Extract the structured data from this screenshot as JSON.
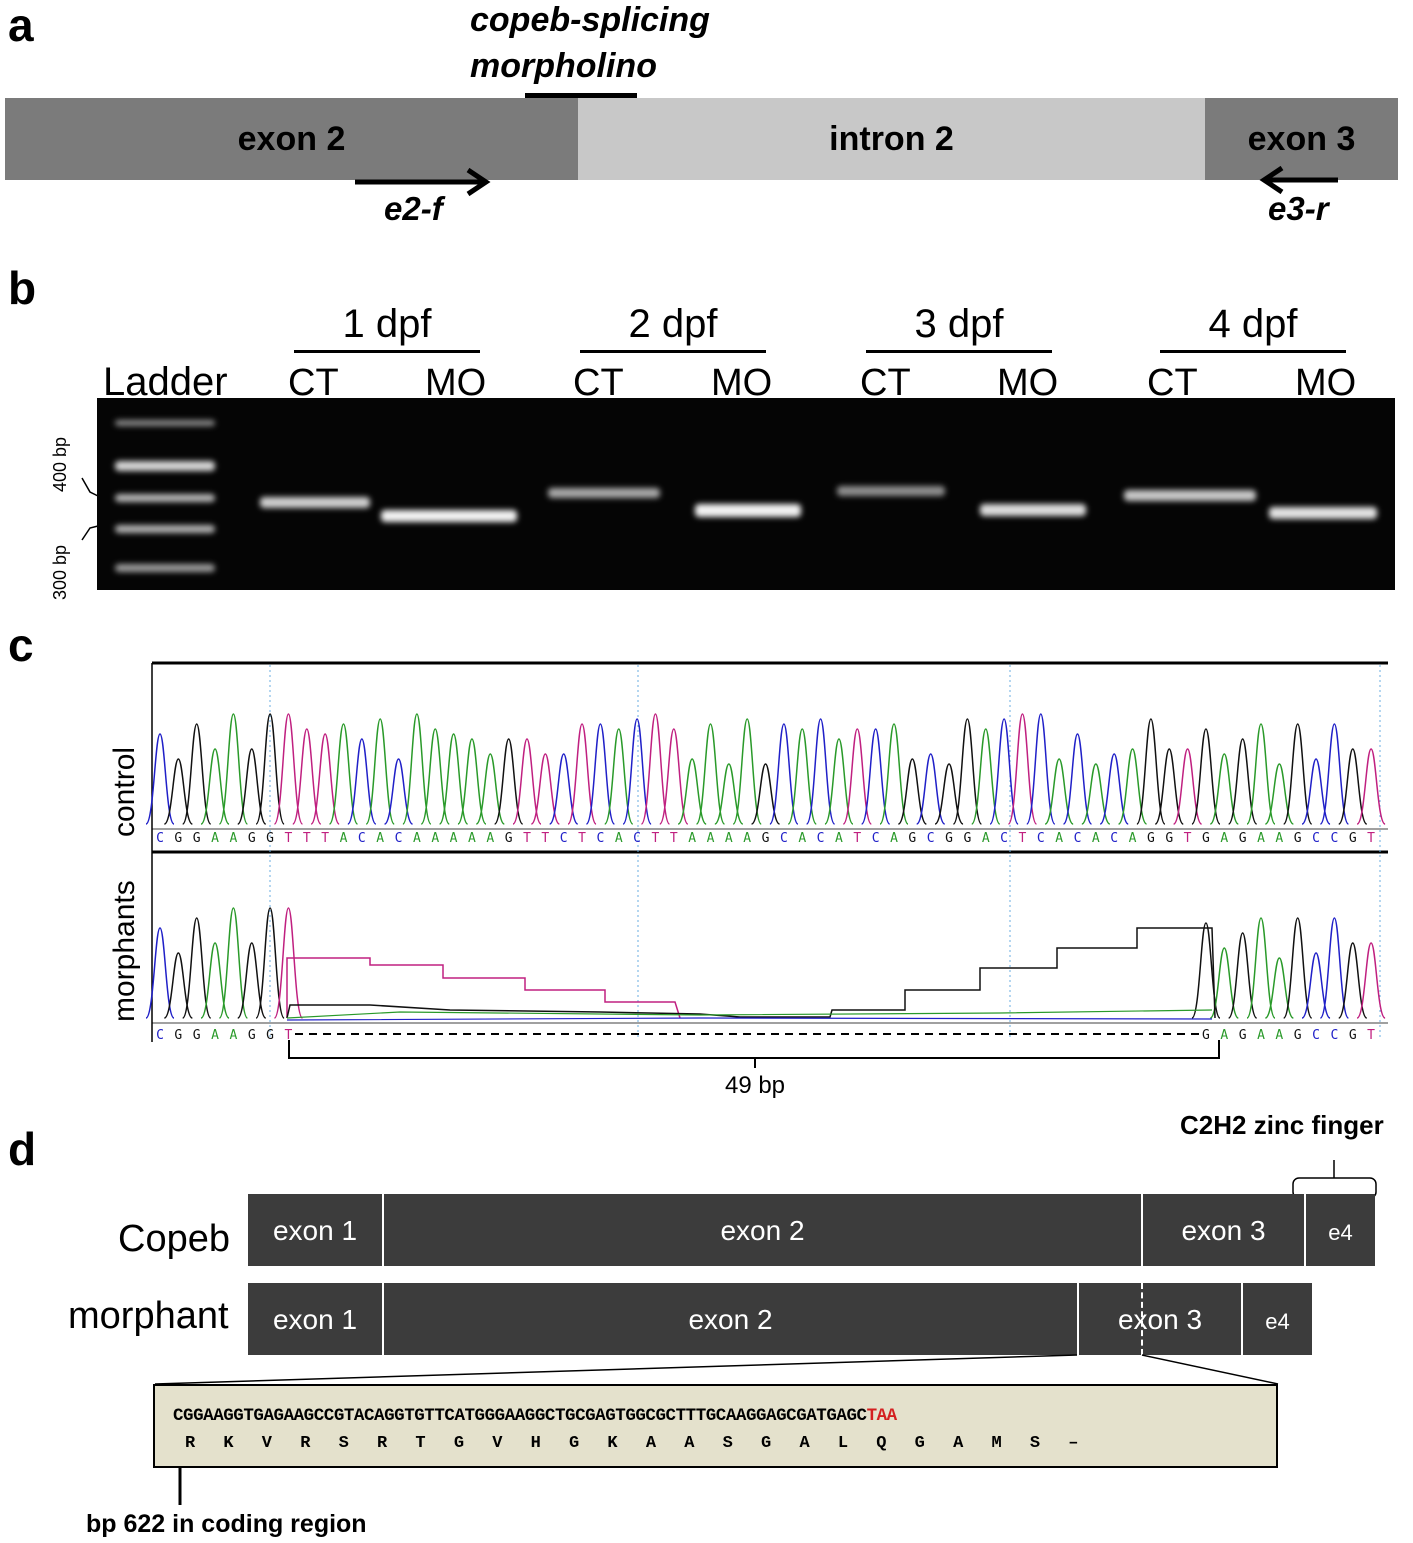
{
  "panel_a": {
    "letter": "a",
    "morpholino_line1": "copeb-splicing",
    "morpholino_line2": "morpholino",
    "segments": [
      "exon 2",
      "intron 2",
      "exon 3"
    ],
    "primer_forward": "e2-f",
    "primer_reverse": "e3-r"
  },
  "panel_b": {
    "letter": "b",
    "ladder_label": "Ladder",
    "size_400": "400 bp",
    "size_300": "300 bp",
    "groups": [
      {
        "label": "1 dpf",
        "ct": "CT",
        "mo": "MO"
      },
      {
        "label": "2 dpf",
        "ct": "CT",
        "mo": "MO"
      },
      {
        "label": "3 dpf",
        "ct": "CT",
        "mo": "MO"
      },
      {
        "label": "4 dpf",
        "ct": "CT",
        "mo": "MO"
      }
    ]
  },
  "panel_c": {
    "letter": "c",
    "control_label": "control",
    "morphant_label": "morphants",
    "control_seq": "CGGAAGGTTTACACAAAAAGTTCTCACTTAAAAGCACATCAGCGGACTCACACAGGTGAGAAGCCGT",
    "morphant_seq_left": "CGGAAGGT",
    "morphant_seq_right": "GAGAAGCCGT",
    "deletion_label": "49 bp"
  },
  "panel_d": {
    "letter": "d",
    "zinc_finger_label": "C2H2 zinc finger",
    "copeb_label": "Copeb",
    "morphant_label": "morphant",
    "copeb_exons": [
      "exon 1",
      "exon 2",
      "exon 3",
      "e4"
    ],
    "morphant_exons": [
      "exon 1",
      "exon 2",
      "exon 3",
      "e4"
    ],
    "dna_seq_main": "CGGAAGGTGAGAAGCCGTACAGGTGTTCATGGGAAGGCTGCGAGTGGCGCTTTGCAAGGAGCGATGAGC",
    "dna_seq_stop": "TAA",
    "protein_seq": "R K V R S R T G V H G K A A S G A L Q G A M S –",
    "coding_note": "bp 622 in coding region"
  },
  "colors": {
    "exon_dark": "#7b7b7b",
    "intron_light": "#c8c8c8",
    "gel_bg": "#050505",
    "exon_box": "#3c3c3c",
    "seq_box_bg": "#e4e1cc",
    "stop_codon": "#d42020",
    "base_A": "#2a9a2a",
    "base_C": "#2020c8",
    "base_G": "#111111",
    "base_T": "#c02080"
  }
}
